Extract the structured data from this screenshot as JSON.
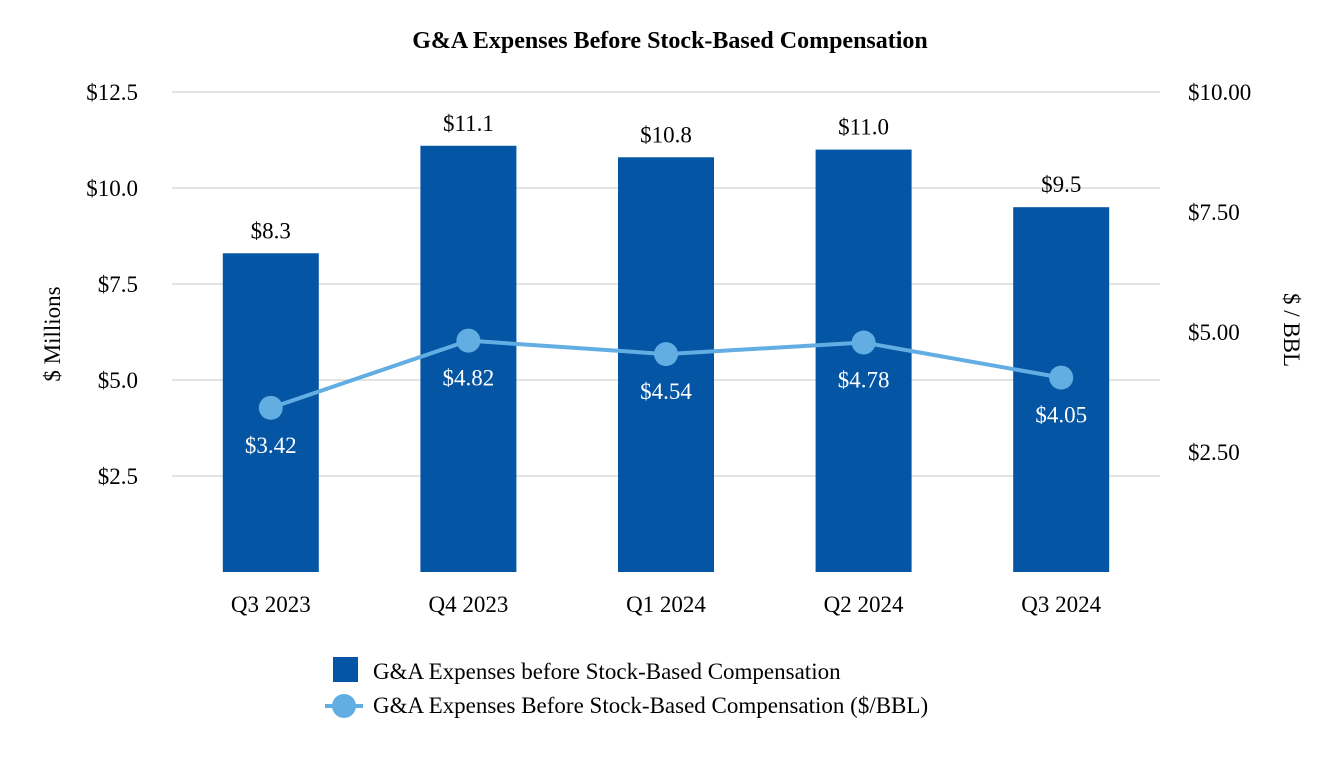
{
  "chart_data": {
    "type": "bar+line",
    "title": "G&A Expenses Before Stock-Based Compensation",
    "categories": [
      "Q3 2023",
      "Q4 2023",
      "Q1 2024",
      "Q2 2024",
      "Q3 2024"
    ],
    "series": [
      {
        "name": "G&A Expenses before Stock-Based Compensation",
        "type": "bar",
        "axis": "left",
        "values": [
          8.3,
          11.1,
          10.8,
          11.0,
          9.5
        ],
        "labels": [
          "$8.3",
          "$11.1",
          "$10.8",
          "$11.0",
          "$9.5"
        ],
        "color": "#0455a3"
      },
      {
        "name": "G&A Expenses Before Stock-Based Compensation ($/BBL)",
        "type": "line",
        "axis": "right",
        "values": [
          3.42,
          4.82,
          4.54,
          4.78,
          4.05
        ],
        "labels": [
          "$3.42",
          "$4.82",
          "$4.54",
          "$4.78",
          "$4.05"
        ],
        "color": "#62aee3"
      }
    ],
    "left_axis": {
      "label": "$ Millions",
      "range": [
        0,
        12.5
      ],
      "ticks": [
        2.5,
        5.0,
        7.5,
        10.0,
        12.5
      ],
      "tick_labels": [
        "$2.5",
        "$5.0",
        "$7.5",
        "$10.0",
        "$12.5"
      ]
    },
    "right_axis": {
      "label": "$ / BBL",
      "range": [
        0,
        10.0
      ],
      "ticks": [
        2.5,
        5.0,
        7.5,
        10.0
      ],
      "tick_labels": [
        "$2.50",
        "$5.00",
        "$7.50",
        "$10.00"
      ]
    },
    "grid": true,
    "legend_position": "bottom-center",
    "gridline_color": "#e3e3e3"
  }
}
